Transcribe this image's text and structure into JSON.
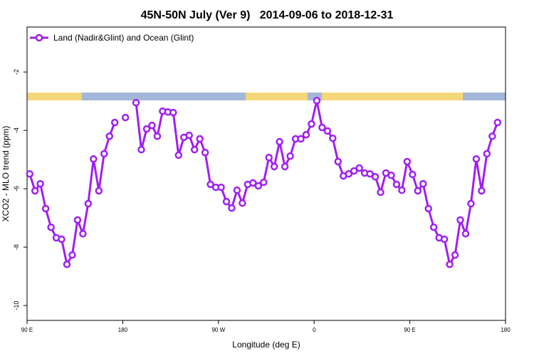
{
  "chart_data": {
    "type": "line",
    "title": "45N-50N July (Ver 9)   2014-09-06 to 2018-12-31",
    "x_label": "Longitude (deg E)",
    "y_label": "XCO2 - MLO trend (ppm)",
    "xlim": [
      90,
      540
    ],
    "xticks": [
      {
        "value": 90,
        "label": "90 E"
      },
      180,
      {
        "value": 270,
        "label": "90 W"
      },
      {
        "value": 360,
        "label": "0"
      },
      {
        "value": 450,
        "label": "90 E"
      },
      {
        "value": 540,
        "label": "180"
      }
    ],
    "ylim": [
      -10.51,
      -0.46
    ],
    "yticks": [
      -2,
      -4,
      -6,
      -8,
      -10
    ],
    "grid": false,
    "legend": "top-left",
    "x": [
      92.5,
      97.5,
      102.5,
      107.5,
      112.5,
      117.5,
      122.5,
      127.5,
      132.5,
      137.5,
      142.5,
      147.5,
      152.5,
      157.5,
      162.5,
      167.5,
      172.5,
      177.5,
      182.5,
      187.5,
      192.5,
      197.5,
      202.5,
      207.5,
      212.5,
      217.5,
      222.5,
      227.5,
      232.5,
      237.5,
      242.5,
      247.5,
      252.5,
      257.5,
      262.5,
      267.5,
      272.5,
      277.5,
      282.5,
      287.5,
      292.5,
      297.5,
      302.5,
      307.5,
      312.5,
      317.5,
      322.5,
      327.5,
      332.5,
      337.5,
      342.5,
      347.5,
      352.5,
      357.5,
      362.5,
      367.5,
      372.5,
      377.5,
      382.5,
      387.5,
      392.5,
      397.5,
      402.5,
      407.5,
      412.5,
      417.5,
      422.5,
      427.5,
      432.5,
      437.5,
      442.5,
      447.5,
      452.5,
      457.5,
      462.5,
      467.5,
      472.5,
      477.5,
      482.5,
      487.5,
      492.5,
      497.5,
      502.5,
      507.5,
      512.5,
      517.5,
      522.5,
      527.5,
      532.5
    ],
    "series": [
      {
        "name": "Land (Nadir&Glint) and Ocean (Glint)",
        "color": "#a020f0",
        "values": [
          -5.49,
          -6.07,
          -5.83,
          -6.68,
          -7.32,
          -7.68,
          -7.73,
          -8.59,
          -8.27,
          -7.07,
          -7.54,
          -6.51,
          -4.98,
          -6.07,
          -4.8,
          -4.2,
          -3.73,
          null,
          -3.56,
          null,
          -3.05,
          -4.66,
          -3.95,
          -3.83,
          -4.2,
          -3.34,
          -3.37,
          -3.39,
          -4.85,
          -4.24,
          -4.17,
          -4.66,
          -4.29,
          -4.76,
          -5.85,
          -5.95,
          -5.95,
          -6.44,
          -6.66,
          -6.05,
          -6.49,
          -5.85,
          -5.8,
          -5.9,
          -5.78,
          -4.93,
          -5.24,
          -4.39,
          -5.24,
          -4.88,
          -4.29,
          -4.29,
          -4.15,
          -3.78,
          -2.98,
          -3.9,
          -4.02,
          -4.27,
          -5.07,
          -5.56,
          -5.49,
          -5.39,
          -5.29,
          -5.46,
          -5.49,
          -5.59,
          -6.12,
          -5.46,
          -5.54,
          -5.85,
          -6.05,
          -5.07,
          -5.51,
          -6.07,
          -5.83,
          -6.68,
          -7.32,
          -7.68,
          -7.73,
          -8.59,
          -8.27,
          -7.07,
          -7.54,
          -6.51,
          -4.98,
          -6.07,
          -4.8,
          -4.2,
          -3.73
        ]
      }
    ]
  }
}
